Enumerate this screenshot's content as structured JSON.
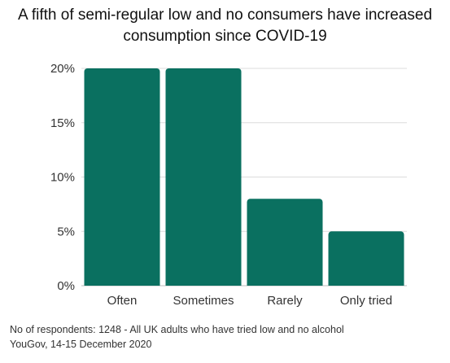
{
  "chart_data": {
    "type": "bar",
    "title": "A fifth of semi-regular low and no consumers have increased consumption since COVID-19",
    "categories": [
      "Often",
      "Sometimes",
      "Rarely",
      "Only tried"
    ],
    "values": [
      20,
      20,
      8,
      5
    ],
    "ylim": [
      0,
      20
    ],
    "yticks": [
      "0%",
      "5%",
      "10%",
      "15%",
      "20%"
    ],
    "ytick_values": [
      0,
      5,
      10,
      15,
      20
    ],
    "grid": true,
    "bar_color": "#0a7060",
    "xlabel": "",
    "ylabel": ""
  },
  "title_lines": [
    "A fifth of semi-regular low and no consumers have increased",
    "consumption since COVID-19"
  ],
  "notes": [
    "No of respondents: 1248 - All UK adults who have tried low and no alcohol",
    "YouGov, 14-15 December 2020"
  ]
}
